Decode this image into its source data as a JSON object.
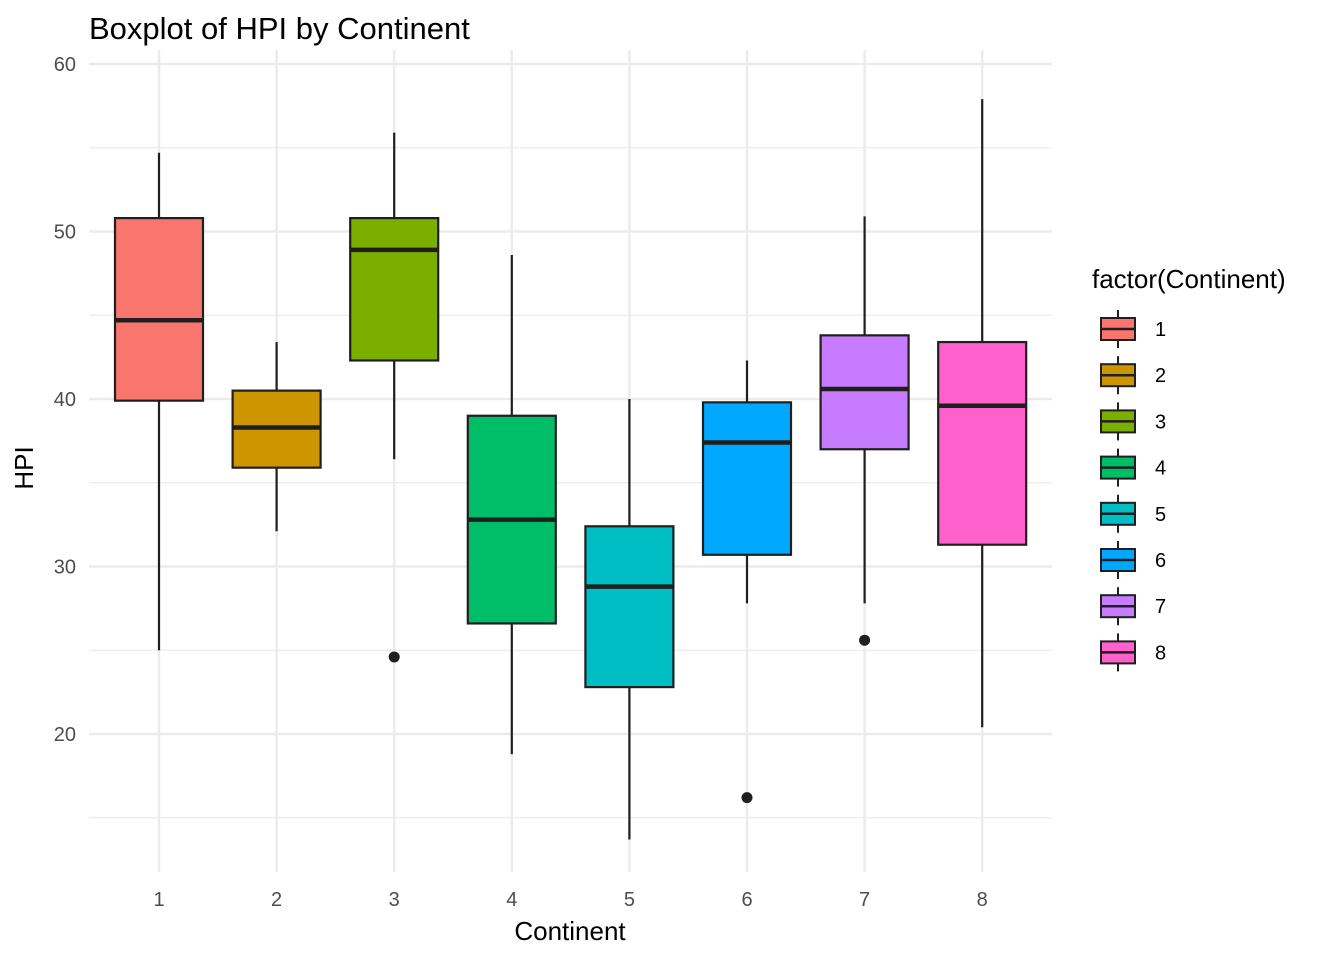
{
  "chart_data": {
    "type": "boxplot",
    "title": "Boxplot of HPI by Continent",
    "xlabel": "Continent",
    "ylabel": "HPI",
    "ylim": [
      12.5,
      61
    ],
    "y_ticks": [
      20,
      30,
      40,
      50,
      60
    ],
    "grid": true,
    "legend": {
      "title": "factor(Continent)",
      "position": "right"
    },
    "categories": [
      "1",
      "2",
      "3",
      "4",
      "5",
      "6",
      "7",
      "8"
    ],
    "colors": [
      "#F8766D",
      "#CD9600",
      "#7CAE00",
      "#00BE67",
      "#00BFC4",
      "#00A9FF",
      "#C77CFF",
      "#FF61CC"
    ],
    "boxes": [
      {
        "category": "1",
        "whisker_low": 25.0,
        "q1": 39.9,
        "median": 44.7,
        "q3": 50.8,
        "whisker_high": 54.7,
        "outliers": []
      },
      {
        "category": "2",
        "whisker_low": 32.1,
        "q1": 35.9,
        "median": 38.3,
        "q3": 40.5,
        "whisker_high": 43.4,
        "outliers": []
      },
      {
        "category": "3",
        "whisker_low": 36.4,
        "q1": 42.3,
        "median": 48.9,
        "q3": 50.8,
        "whisker_high": 55.9,
        "outliers": [
          24.6
        ]
      },
      {
        "category": "4",
        "whisker_low": 18.8,
        "q1": 26.6,
        "median": 32.8,
        "q3": 39.0,
        "whisker_high": 48.6,
        "outliers": []
      },
      {
        "category": "5",
        "whisker_low": 13.7,
        "q1": 22.8,
        "median": 28.8,
        "q3": 32.4,
        "whisker_high": 40.0,
        "outliers": []
      },
      {
        "category": "6",
        "whisker_low": 27.8,
        "q1": 30.7,
        "median": 37.4,
        "q3": 39.8,
        "whisker_high": 42.3,
        "outliers": [
          16.2
        ]
      },
      {
        "category": "7",
        "whisker_low": 27.8,
        "q1": 37.0,
        "median": 40.6,
        "q3": 43.8,
        "whisker_high": 50.9,
        "outliers": [
          25.6
        ]
      },
      {
        "category": "8",
        "whisker_low": 20.4,
        "q1": 31.3,
        "median": 39.6,
        "q3": 43.4,
        "whisker_high": 57.9,
        "outliers": []
      }
    ]
  }
}
